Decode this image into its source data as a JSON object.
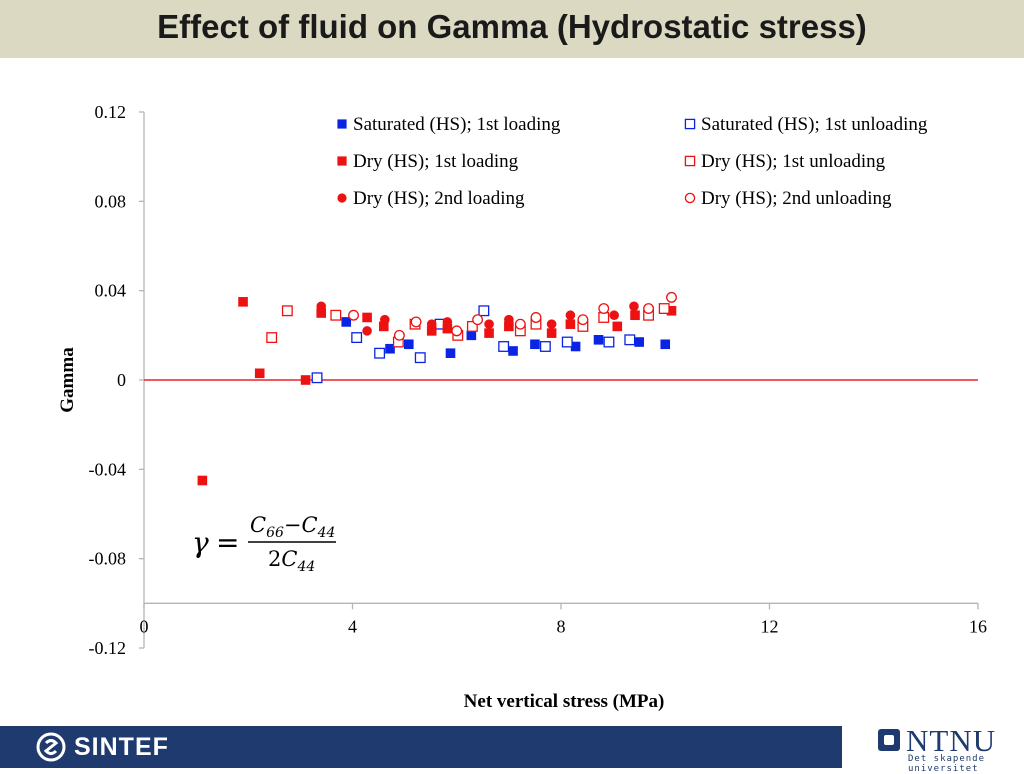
{
  "slide": {
    "title": "Effect of fluid on Gamma (Hydrostatic stress)"
  },
  "chart_data": {
    "type": "scatter",
    "xlabel": "Net vertical stress (MPa)",
    "ylabel": "Gamma",
    "xlim": [
      0,
      16
    ],
    "ylim": [
      -0.12,
      0.12
    ],
    "x_ticks": [
      "0",
      "4",
      "8",
      "12",
      "16"
    ],
    "y_ticks": [
      "0.12",
      "0.08",
      "0.04",
      "0",
      "-0.04",
      "-0.08",
      "-0.12"
    ],
    "grid": false,
    "legend_position": "top-right",
    "reference_line": {
      "y": 0,
      "color": "#e8232a"
    },
    "series": [
      {
        "name": "Saturated (HS); 1st loading",
        "marker": "square",
        "filled": true,
        "color": "#0a24e6",
        "points": [
          [
            3.88,
            0.026
          ],
          [
            4.72,
            0.014
          ],
          [
            5.08,
            0.016
          ],
          [
            5.88,
            0.012
          ],
          [
            6.28,
            0.02
          ],
          [
            7.08,
            0.013
          ],
          [
            7.5,
            0.016
          ],
          [
            8.28,
            0.015
          ],
          [
            8.72,
            0.018
          ],
          [
            9.5,
            0.017
          ],
          [
            10.0,
            0.016
          ]
        ]
      },
      {
        "name": "Saturated (HS); 1st unloading",
        "marker": "square",
        "filled": false,
        "color": "#0a24e6",
        "points": [
          [
            3.32,
            0.001
          ],
          [
            4.08,
            0.019
          ],
          [
            4.52,
            0.012
          ],
          [
            5.3,
            0.01
          ],
          [
            5.68,
            0.025
          ],
          [
            6.52,
            0.031
          ],
          [
            6.9,
            0.015
          ],
          [
            7.7,
            0.015
          ],
          [
            8.12,
            0.017
          ],
          [
            8.92,
            0.017
          ],
          [
            9.32,
            0.018
          ]
        ]
      },
      {
        "name": "Dry (HS); 1st loading",
        "marker": "square",
        "filled": true,
        "color": "#ee1111",
        "points": [
          [
            1.12,
            -0.045
          ],
          [
            1.9,
            0.035
          ],
          [
            2.22,
            0.003
          ],
          [
            3.1,
            0.0
          ],
          [
            3.4,
            0.03
          ],
          [
            4.28,
            0.028
          ],
          [
            4.6,
            0.024
          ],
          [
            5.52,
            0.022
          ],
          [
            5.82,
            0.023
          ],
          [
            6.62,
            0.021
          ],
          [
            7.0,
            0.024
          ],
          [
            7.82,
            0.021
          ],
          [
            8.18,
            0.025
          ],
          [
            9.08,
            0.024
          ],
          [
            9.42,
            0.029
          ],
          [
            10.12,
            0.031
          ]
        ]
      },
      {
        "name": "Dry (HS); 1st unloading",
        "marker": "square",
        "filled": false,
        "color": "#ee1111",
        "points": [
          [
            2.45,
            0.019
          ],
          [
            2.75,
            0.031
          ],
          [
            3.68,
            0.029
          ],
          [
            4.88,
            0.017
          ],
          [
            5.2,
            0.025
          ],
          [
            6.02,
            0.02
          ],
          [
            6.3,
            0.024
          ],
          [
            7.22,
            0.022
          ],
          [
            7.52,
            0.025
          ],
          [
            8.42,
            0.024
          ],
          [
            8.82,
            0.028
          ],
          [
            9.68,
            0.029
          ],
          [
            9.98,
            0.032
          ]
        ]
      },
      {
        "name": "Dry (HS); 2nd loading",
        "marker": "circle",
        "filled": true,
        "color": "#ee1111",
        "points": [
          [
            3.4,
            0.033
          ],
          [
            4.28,
            0.022
          ],
          [
            4.62,
            0.027
          ],
          [
            5.52,
            0.025
          ],
          [
            5.82,
            0.026
          ],
          [
            6.62,
            0.025
          ],
          [
            7.0,
            0.027
          ],
          [
            7.82,
            0.025
          ],
          [
            8.18,
            0.029
          ],
          [
            9.02,
            0.029
          ],
          [
            9.4,
            0.033
          ]
        ]
      },
      {
        "name": "Dry (HS); 2nd unloading",
        "marker": "circle",
        "filled": false,
        "color": "#ee1111",
        "points": [
          [
            4.02,
            0.029
          ],
          [
            4.9,
            0.02
          ],
          [
            5.22,
            0.026
          ],
          [
            6.0,
            0.022
          ],
          [
            6.4,
            0.027
          ],
          [
            7.22,
            0.025
          ],
          [
            7.52,
            0.028
          ],
          [
            8.42,
            0.027
          ],
          [
            8.82,
            0.032
          ],
          [
            9.68,
            0.032
          ],
          [
            10.12,
            0.037
          ]
        ]
      }
    ]
  },
  "formula": {
    "lhs": "γ",
    "eq": "=",
    "num_a": "C",
    "num_a_sub": "66",
    "num_op": "−",
    "num_b": "C",
    "num_b_sub": "44",
    "den_coef": "2",
    "den_c": "C",
    "den_sub": "44"
  },
  "footer": {
    "sintef": "SINTEF",
    "ntnu_name": "NTNU",
    "ntnu_tagline": "Det skapende universitet"
  }
}
